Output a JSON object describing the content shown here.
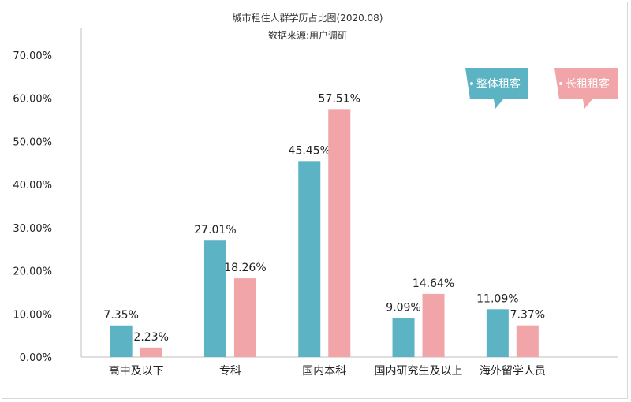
{
  "chart_data": {
    "type": "bar",
    "title": "城市租住人群学历占比图(2020.08)",
    "subtitle": "数据来源:用户调研",
    "categories": [
      "高中及以下",
      "专科",
      "国内本科",
      "国内研究生及以上",
      "海外留学人员"
    ],
    "series": [
      {
        "name": "整体租客",
        "values": [
          7.35,
          27.01,
          45.45,
          9.09,
          11.09
        ],
        "labels": [
          "7.35%",
          "27.01%",
          "45.45%",
          "9.09%",
          "11.09%"
        ]
      },
      {
        "name": "长租租客",
        "values": [
          2.23,
          18.26,
          57.51,
          14.64,
          7.37
        ],
        "labels": [
          "2.23%",
          "18.26%",
          "57.51%",
          "14.64%",
          "7.37%"
        ]
      }
    ],
    "ylim": [
      0,
      70
    ],
    "yticks": [
      "0.00%",
      "10.00%",
      "20.00%",
      "30.00%",
      "40.00%",
      "50.00%",
      "60.00%",
      "70.00%"
    ],
    "grid": false,
    "legend_position": "top-right",
    "colors": {
      "series1": "#5bb3c4",
      "series2": "#f1a5a8"
    }
  }
}
